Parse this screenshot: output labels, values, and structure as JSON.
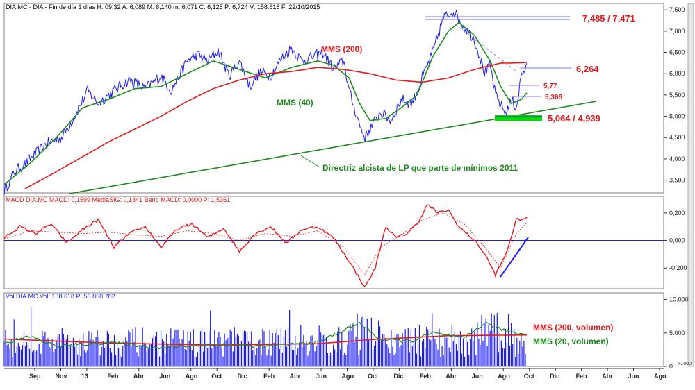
{
  "colors": {
    "price": "#1a1aff",
    "mms200": "#e8191c",
    "mms40": "#1f8a1f",
    "trendline": "#1f8a1f",
    "resistance": "#6c6cff",
    "panel_border": "#808080",
    "axis_bg": "#ffffff",
    "zero_line": "#2222cc"
  },
  "price_panel": {
    "header": "DIA.MC - DIA - Fin de día 1 días H: 09:32 A: 6,089 M: 6,140 m: 6,071 C: 6,125 P: 6,724 V: 158.618 F: 22/10/2015",
    "y_ticks": [
      "7,500",
      "7,000",
      "6,500",
      "6,000",
      "5,500",
      "5,000",
      "4,500",
      "4,000",
      "3,500"
    ],
    "annotations": {
      "high_label": "7,485 / 7,471",
      "current_label": "6,264",
      "level_1": "5,77",
      "level_2": "5,368",
      "support_label": "5,064 / 4,939",
      "mms200_label": "MMS (200)",
      "mms40_label": "MMS (40)",
      "trend_label": "Directriz alcista de LP que parte de mínimos 2011"
    }
  },
  "macd_panel": {
    "header": "MACD DIA.MC MACD: 0,1599 MediaSIG: 0,1341 Band MACD: 0,0000 P: 1,5361",
    "y_ticks": [
      "0,200",
      "0,000",
      "-0,200"
    ]
  },
  "volume_panel": {
    "header": "Vol DIA.MC Vol: 158.618 P: 53.850.782",
    "y_ticks": [
      "10.000",
      "5.000",
      "0"
    ],
    "scale_note": "x1000",
    "mms200_label": "MMS (200, volumen)",
    "mms20_label": "MMS (20, volumen)"
  },
  "x_axis": {
    "labels": [
      "Sep",
      "Nov",
      "13",
      "Feb",
      "Abr",
      "Jun",
      "Ago",
      "Oct",
      "Dic",
      "Feb",
      "Abr",
      "Jun",
      "Ago",
      "Oct",
      "Dic",
      "Feb",
      "Abr",
      "Jun",
      "Ago",
      "Oct",
      "Dic",
      "Feb",
      "Abr",
      "Jun",
      "Ago"
    ]
  },
  "chart_data": [
    {
      "type": "line",
      "title": "DIA.MC - DIA - Fin de día 1 días",
      "y_range": [
        3200,
        7650
      ],
      "series": [
        {
          "name": "DIA",
          "anchors": [
            [
              0,
              3250
            ],
            [
              0.02,
              3700
            ],
            [
              0.05,
              4000
            ],
            [
              0.08,
              4350
            ],
            [
              0.11,
              4500
            ],
            [
              0.13,
              4900
            ],
            [
              0.16,
              5600
            ],
            [
              0.18,
              5300
            ],
            [
              0.2,
              5500
            ],
            [
              0.22,
              5700
            ],
            [
              0.24,
              5850
            ],
            [
              0.27,
              5650
            ],
            [
              0.3,
              5950
            ],
            [
              0.32,
              5600
            ],
            [
              0.35,
              6300
            ],
            [
              0.37,
              6450
            ],
            [
              0.39,
              6300
            ],
            [
              0.41,
              6550
            ],
            [
              0.43,
              5950
            ],
            [
              0.45,
              6300
            ],
            [
              0.47,
              5700
            ],
            [
              0.49,
              6050
            ],
            [
              0.51,
              5950
            ],
            [
              0.53,
              6350
            ],
            [
              0.55,
              6600
            ],
            [
              0.57,
              6300
            ],
            [
              0.59,
              6400
            ],
            [
              0.61,
              6500
            ],
            [
              0.63,
              6100
            ],
            [
              0.65,
              6300
            ],
            [
              0.66,
              5600
            ],
            [
              0.68,
              4800
            ],
            [
              0.69,
              4500
            ],
            [
              0.7,
              4700
            ],
            [
              0.72,
              5100
            ],
            [
              0.74,
              4900
            ],
            [
              0.76,
              5400
            ],
            [
              0.78,
              5300
            ],
            [
              0.8,
              5900
            ],
            [
              0.82,
              6500
            ],
            [
              0.84,
              7300
            ],
            [
              0.86,
              7485
            ],
            [
              0.88,
              7100
            ],
            [
              0.9,
              6800
            ],
            [
              0.92,
              6000
            ],
            [
              0.93,
              6200
            ],
            [
              0.94,
              5500
            ],
            [
              0.96,
              5064
            ],
            [
              0.97,
              5400
            ],
            [
              0.98,
              5200
            ],
            [
              0.99,
              6000
            ],
            [
              1,
              6125
            ]
          ]
        },
        {
          "name": "MMS (40)",
          "anchors": [
            [
              0,
              3400
            ],
            [
              0.05,
              3900
            ],
            [
              0.1,
              4500
            ],
            [
              0.15,
              5200
            ],
            [
              0.2,
              5400
            ],
            [
              0.25,
              5650
            ],
            [
              0.3,
              5700
            ],
            [
              0.35,
              6000
            ],
            [
              0.4,
              6300
            ],
            [
              0.45,
              6100
            ],
            [
              0.5,
              5900
            ],
            [
              0.55,
              6150
            ],
            [
              0.6,
              6300
            ],
            [
              0.63,
              6200
            ],
            [
              0.66,
              5900
            ],
            [
              0.68,
              5300
            ],
            [
              0.7,
              4900
            ],
            [
              0.73,
              4950
            ],
            [
              0.76,
              5200
            ],
            [
              0.79,
              5500
            ],
            [
              0.82,
              6400
            ],
            [
              0.85,
              7000
            ],
            [
              0.87,
              7200
            ],
            [
              0.9,
              6900
            ],
            [
              0.93,
              6300
            ],
            [
              0.95,
              5700
            ],
            [
              0.97,
              5300
            ],
            [
              0.99,
              5400
            ],
            [
              1,
              5550
            ]
          ]
        },
        {
          "name": "MMS (200)",
          "anchors": [
            [
              0.04,
              3300
            ],
            [
              0.1,
              3700
            ],
            [
              0.2,
              4400
            ],
            [
              0.3,
              5000
            ],
            [
              0.35,
              5350
            ],
            [
              0.4,
              5650
            ],
            [
              0.45,
              5850
            ],
            [
              0.5,
              6000
            ],
            [
              0.55,
              6050
            ],
            [
              0.6,
              6150
            ],
            [
              0.65,
              6100
            ],
            [
              0.7,
              6000
            ],
            [
              0.75,
              5850
            ],
            [
              0.8,
              5800
            ],
            [
              0.85,
              5900
            ],
            [
              0.9,
              6100
            ],
            [
              0.95,
              6250
            ],
            [
              0.97,
              6250
            ],
            [
              1,
              6264
            ]
          ]
        }
      ]
    },
    {
      "type": "line",
      "title": "MACD DIA.MC",
      "y_range": [
        -0.35,
        0.32
      ],
      "series": [
        {
          "name": "MACD",
          "anchors": [
            [
              0,
              0.02
            ],
            [
              0.03,
              0.1
            ],
            [
              0.06,
              0.05
            ],
            [
              0.09,
              0.12
            ],
            [
              0.12,
              -0.02
            ],
            [
              0.15,
              0.08
            ],
            [
              0.18,
              0.15
            ],
            [
              0.21,
              -0.05
            ],
            [
              0.24,
              0.05
            ],
            [
              0.27,
              0.1
            ],
            [
              0.3,
              -0.05
            ],
            [
              0.33,
              0.08
            ],
            [
              0.36,
              0.12
            ],
            [
              0.39,
              0.02
            ],
            [
              0.42,
              0.09
            ],
            [
              0.45,
              -0.08
            ],
            [
              0.48,
              0.05
            ],
            [
              0.51,
              0.1
            ],
            [
              0.54,
              -0.02
            ],
            [
              0.57,
              0.08
            ],
            [
              0.6,
              0.1
            ],
            [
              0.63,
              0.02
            ],
            [
              0.66,
              -0.15
            ],
            [
              0.69,
              -0.34
            ],
            [
              0.71,
              -0.2
            ],
            [
              0.73,
              0.1
            ],
            [
              0.75,
              0.02
            ],
            [
              0.77,
              0.05
            ],
            [
              0.79,
              0.12
            ],
            [
              0.81,
              0.26
            ],
            [
              0.83,
              0.2
            ],
            [
              0.85,
              0.22
            ],
            [
              0.87,
              0.1
            ],
            [
              0.9,
              0.0
            ],
            [
              0.92,
              -0.1
            ],
            [
              0.94,
              -0.25
            ],
            [
              0.96,
              -0.1
            ],
            [
              0.98,
              0.15
            ],
            [
              1,
              0.16
            ]
          ]
        },
        {
          "name": "MediaSIG",
          "anchors": [
            [
              0,
              0.01
            ],
            [
              0.05,
              0.07
            ],
            [
              0.1,
              0.06
            ],
            [
              0.15,
              0.05
            ],
            [
              0.2,
              0.06
            ],
            [
              0.25,
              0.04
            ],
            [
              0.3,
              0.03
            ],
            [
              0.35,
              0.07
            ],
            [
              0.4,
              0.05
            ],
            [
              0.45,
              0.0
            ],
            [
              0.5,
              0.05
            ],
            [
              0.55,
              0.03
            ],
            [
              0.6,
              0.07
            ],
            [
              0.65,
              -0.05
            ],
            [
              0.69,
              -0.25
            ],
            [
              0.72,
              -0.05
            ],
            [
              0.76,
              0.04
            ],
            [
              0.8,
              0.15
            ],
            [
              0.84,
              0.2
            ],
            [
              0.88,
              0.12
            ],
            [
              0.92,
              -0.05
            ],
            [
              0.95,
              -0.2
            ],
            [
              0.98,
              0.05
            ],
            [
              1,
              0.13
            ]
          ]
        }
      ]
    },
    {
      "type": "bar",
      "title": "Vol DIA.MC",
      "y_range": [
        0,
        11000
      ],
      "series": [
        {
          "name": "Vol",
          "base": 3500,
          "spread": 4500
        },
        {
          "name": "MMS (200, volumen)",
          "anchors": [
            [
              0,
              4100
            ],
            [
              0.2,
              3500
            ],
            [
              0.4,
              3200
            ],
            [
              0.6,
              3400
            ],
            [
              0.7,
              4000
            ],
            [
              0.85,
              4600
            ],
            [
              1,
              4700
            ]
          ]
        },
        {
          "name": "MMS (20, volumen)",
          "anchors": [
            [
              0,
              3500
            ],
            [
              0.05,
              4500
            ],
            [
              0.1,
              3000
            ],
            [
              0.2,
              3600
            ],
            [
              0.3,
              2800
            ],
            [
              0.4,
              3300
            ],
            [
              0.5,
              3000
            ],
            [
              0.6,
              3600
            ],
            [
              0.68,
              6500
            ],
            [
              0.72,
              4000
            ],
            [
              0.78,
              3800
            ],
            [
              0.82,
              5000
            ],
            [
              0.88,
              4200
            ],
            [
              0.92,
              6500
            ],
            [
              0.95,
              5500
            ],
            [
              0.98,
              5000
            ],
            [
              1,
              4800
            ]
          ]
        }
      ]
    }
  ]
}
